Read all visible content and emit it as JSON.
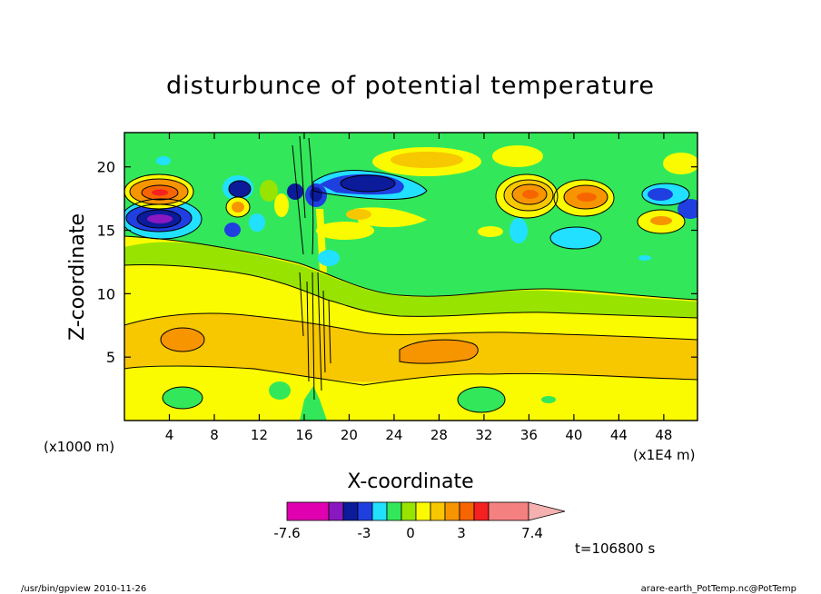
{
  "chart_data": {
    "type": "heatmap",
    "title": "disturbunce of potential temperature",
    "xlabel": "X-coordinate",
    "ylabel": "Z-coordinate",
    "x_unit": "(x1E4 m)",
    "y_unit": "(x1000 m)",
    "xlim": [
      0,
      51
    ],
    "ylim": [
      0,
      22.7
    ],
    "x_ticks": [
      4,
      8,
      12,
      16,
      20,
      24,
      28,
      32,
      36,
      40,
      44,
      48
    ],
    "y_ticks": [
      5,
      10,
      15,
      20
    ],
    "colorbar": {
      "tick_labels": [
        "-7.6",
        "-3",
        "0",
        "3",
        "7.4"
      ],
      "colors": [
        "#e000b0",
        "#8a18c0",
        "#0b1b9a",
        "#1f3fe0",
        "#22e0ff",
        "#32e85a",
        "#98e400",
        "#fbfb00",
        "#f7c700",
        "#f79500",
        "#f76500",
        "#f52020",
        "#f58080",
        "#f5b0b0"
      ],
      "triangle_end": "right"
    },
    "features": [
      {
        "x": 3.2,
        "z": 16.0,
        "value": -7.0
      },
      {
        "x": 3.0,
        "z": 18.2,
        "value": 4.5
      },
      {
        "x": 10.0,
        "z": 18.2,
        "value": -4.0
      },
      {
        "x": 10.2,
        "z": 16.8,
        "value": 3.0
      },
      {
        "x": 15.5,
        "z": 18.0,
        "value": -4.0
      },
      {
        "x": 17.3,
        "z": 17.8,
        "value": -5.0
      },
      {
        "x": 21.5,
        "z": 18.3,
        "value": -4.5
      },
      {
        "x": 36.0,
        "z": 17.8,
        "value": 5.5
      },
      {
        "x": 41.0,
        "z": 17.6,
        "value": 4.5
      },
      {
        "x": 47.5,
        "z": 17.8,
        "value": -3.0
      },
      {
        "x": 48.0,
        "z": 15.7,
        "value": 2.5
      },
      {
        "x": 5.0,
        "z": 6.5,
        "value": 2.5
      },
      {
        "x": 28.0,
        "z": 5.3,
        "value": 3.0
      },
      {
        "x": 39.5,
        "z": 15.2,
        "value": -1.5
      }
    ]
  },
  "footer": {
    "time_label": "t=106800 s",
    "left_note": "/usr/bin/gpview  2010-11-26",
    "right_note": "arare-earth_PotTemp.nc@PotTemp"
  }
}
